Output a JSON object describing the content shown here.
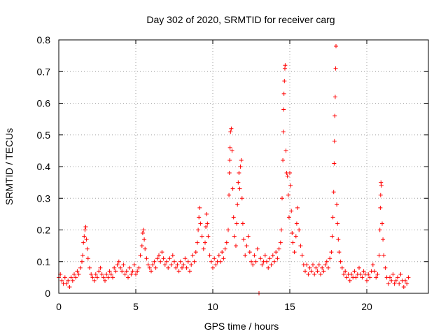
{
  "chart_data": {
    "type": "scatter",
    "title": "Day 302 of 2020, SRMTID for receiver carg",
    "xlabel": "GPS time / hours",
    "ylabel": "SRMTID / TECUs",
    "xlim": [
      0,
      24
    ],
    "ylim": [
      0,
      0.8
    ],
    "xticks": [
      0,
      5,
      10,
      15,
      20
    ],
    "yticks": [
      0,
      0.1,
      0.2,
      0.3,
      0.4,
      0.5,
      0.6,
      0.7,
      0.8
    ],
    "xtick_labels": [
      "0",
      "5",
      "10",
      "15",
      "20"
    ],
    "ytick_labels": [
      "0",
      "0.1",
      "0.2",
      "0.3",
      "0.4",
      "0.5",
      "0.6",
      "0.7",
      "0.8"
    ],
    "grid": true,
    "marker": "+",
    "color": "#ff0000",
    "series": [
      {
        "name": "SRMTID",
        "points": [
          [
            0.0,
            0.05
          ],
          [
            0.1,
            0.06
          ],
          [
            0.2,
            0.04
          ],
          [
            0.3,
            0.03
          ],
          [
            0.4,
            0.05
          ],
          [
            0.5,
            0.03
          ],
          [
            0.6,
            0.04
          ],
          [
            0.7,
            0.02
          ],
          [
            0.8,
            0.05
          ],
          [
            0.9,
            0.04
          ],
          [
            1.0,
            0.06
          ],
          [
            1.1,
            0.05
          ],
          [
            1.2,
            0.07
          ],
          [
            1.3,
            0.06
          ],
          [
            1.4,
            0.08
          ],
          [
            1.5,
            0.1
          ],
          [
            1.55,
            0.12
          ],
          [
            1.6,
            0.16
          ],
          [
            1.65,
            0.18
          ],
          [
            1.7,
            0.2
          ],
          [
            1.75,
            0.21
          ],
          [
            1.8,
            0.17
          ],
          [
            1.85,
            0.14
          ],
          [
            1.9,
            0.11
          ],
          [
            2.0,
            0.08
          ],
          [
            2.1,
            0.06
          ],
          [
            2.2,
            0.05
          ],
          [
            2.3,
            0.04
          ],
          [
            2.4,
            0.06
          ],
          [
            2.5,
            0.05
          ],
          [
            2.6,
            0.07
          ],
          [
            2.7,
            0.08
          ],
          [
            2.8,
            0.06
          ],
          [
            2.9,
            0.05
          ],
          [
            3.0,
            0.04
          ],
          [
            3.1,
            0.06
          ],
          [
            3.2,
            0.05
          ],
          [
            3.3,
            0.07
          ],
          [
            3.4,
            0.06
          ],
          [
            3.5,
            0.05
          ],
          [
            3.6,
            0.08
          ],
          [
            3.7,
            0.07
          ],
          [
            3.8,
            0.09
          ],
          [
            3.9,
            0.1
          ],
          [
            4.0,
            0.08
          ],
          [
            4.1,
            0.07
          ],
          [
            4.2,
            0.09
          ],
          [
            4.3,
            0.06
          ],
          [
            4.4,
            0.07
          ],
          [
            4.5,
            0.05
          ],
          [
            4.6,
            0.08
          ],
          [
            4.7,
            0.06
          ],
          [
            4.8,
            0.07
          ],
          [
            4.9,
            0.09
          ],
          [
            5.0,
            0.06
          ],
          [
            5.1,
            0.07
          ],
          [
            5.2,
            0.08
          ],
          [
            5.3,
            0.12
          ],
          [
            5.4,
            0.15
          ],
          [
            5.45,
            0.19
          ],
          [
            5.5,
            0.2
          ],
          [
            5.55,
            0.17
          ],
          [
            5.6,
            0.14
          ],
          [
            5.7,
            0.11
          ],
          [
            5.8,
            0.09
          ],
          [
            5.9,
            0.08
          ],
          [
            6.0,
            0.07
          ],
          [
            6.1,
            0.09
          ],
          [
            6.2,
            0.1
          ],
          [
            6.3,
            0.08
          ],
          [
            6.4,
            0.11
          ],
          [
            6.5,
            0.12
          ],
          [
            6.6,
            0.1
          ],
          [
            6.7,
            0.13
          ],
          [
            6.8,
            0.11
          ],
          [
            6.9,
            0.09
          ],
          [
            7.0,
            0.1
          ],
          [
            7.1,
            0.08
          ],
          [
            7.2,
            0.11
          ],
          [
            7.3,
            0.09
          ],
          [
            7.4,
            0.12
          ],
          [
            7.5,
            0.1
          ],
          [
            7.6,
            0.08
          ],
          [
            7.7,
            0.09
          ],
          [
            7.8,
            0.07
          ],
          [
            7.9,
            0.1
          ],
          [
            8.0,
            0.08
          ],
          [
            8.1,
            0.09
          ],
          [
            8.2,
            0.11
          ],
          [
            8.3,
            0.08
          ],
          [
            8.4,
            0.1
          ],
          [
            8.5,
            0.07
          ],
          [
            8.6,
            0.09
          ],
          [
            8.7,
            0.12
          ],
          [
            8.8,
            0.1
          ],
          [
            8.9,
            0.13
          ],
          [
            9.0,
            0.16
          ],
          [
            9.05,
            0.2
          ],
          [
            9.1,
            0.24
          ],
          [
            9.15,
            0.27
          ],
          [
            9.2,
            0.22
          ],
          [
            9.3,
            0.18
          ],
          [
            9.4,
            0.14
          ],
          [
            9.5,
            0.16
          ],
          [
            9.55,
            0.21
          ],
          [
            9.6,
            0.25
          ],
          [
            9.65,
            0.22
          ],
          [
            9.7,
            0.18
          ],
          [
            9.8,
            0.12
          ],
          [
            9.9,
            0.1
          ],
          [
            10.0,
            0.08
          ],
          [
            10.1,
            0.11
          ],
          [
            10.2,
            0.09
          ],
          [
            10.3,
            0.1
          ],
          [
            10.4,
            0.12
          ],
          [
            10.5,
            0.1
          ],
          [
            10.6,
            0.13
          ],
          [
            10.7,
            0.11
          ],
          [
            10.8,
            0.14
          ],
          [
            10.9,
            0.16
          ],
          [
            11.0,
            0.2
          ],
          [
            11.05,
            0.31
          ],
          [
            11.08,
            0.38
          ],
          [
            11.1,
            0.42
          ],
          [
            11.12,
            0.46
          ],
          [
            11.15,
            0.51
          ],
          [
            11.2,
            0.52
          ],
          [
            11.25,
            0.45
          ],
          [
            11.3,
            0.33
          ],
          [
            11.35,
            0.24
          ],
          [
            11.4,
            0.18
          ],
          [
            11.5,
            0.15
          ],
          [
            11.55,
            0.22
          ],
          [
            11.6,
            0.28
          ],
          [
            11.65,
            0.35
          ],
          [
            11.7,
            0.38
          ],
          [
            11.75,
            0.33
          ],
          [
            11.8,
            0.4
          ],
          [
            11.85,
            0.42
          ],
          [
            11.9,
            0.3
          ],
          [
            11.95,
            0.22
          ],
          [
            12.0,
            0.17
          ],
          [
            12.1,
            0.12
          ],
          [
            12.2,
            0.15
          ],
          [
            12.3,
            0.18
          ],
          [
            12.4,
            0.13
          ],
          [
            12.5,
            0.1
          ],
          [
            12.6,
            0.09
          ],
          [
            12.7,
            0.12
          ],
          [
            12.8,
            0.1
          ],
          [
            12.9,
            0.14
          ],
          [
            13.0,
            0.0
          ],
          [
            13.1,
            0.11
          ],
          [
            13.2,
            0.09
          ],
          [
            13.3,
            0.1
          ],
          [
            13.4,
            0.12
          ],
          [
            13.5,
            0.1
          ],
          [
            13.6,
            0.08
          ],
          [
            13.7,
            0.11
          ],
          [
            13.8,
            0.09
          ],
          [
            13.9,
            0.12
          ],
          [
            14.0,
            0.1
          ],
          [
            14.1,
            0.13
          ],
          [
            14.2,
            0.11
          ],
          [
            14.3,
            0.14
          ],
          [
            14.4,
            0.16
          ],
          [
            14.45,
            0.2
          ],
          [
            14.5,
            0.3
          ],
          [
            14.55,
            0.42
          ],
          [
            14.58,
            0.51
          ],
          [
            14.6,
            0.58
          ],
          [
            14.62,
            0.63
          ],
          [
            14.65,
            0.67
          ],
          [
            14.68,
            0.71
          ],
          [
            14.7,
            0.72
          ],
          [
            14.75,
            0.45
          ],
          [
            14.8,
            0.38
          ],
          [
            14.85,
            0.37
          ],
          [
            14.9,
            0.31
          ],
          [
            14.95,
            0.24
          ],
          [
            15.0,
            0.38
          ],
          [
            15.05,
            0.34
          ],
          [
            15.1,
            0.26
          ],
          [
            15.15,
            0.19
          ],
          [
            15.2,
            0.16
          ],
          [
            15.3,
            0.13
          ],
          [
            15.4,
            0.18
          ],
          [
            15.45,
            0.22
          ],
          [
            15.5,
            0.27
          ],
          [
            15.6,
            0.2
          ],
          [
            15.7,
            0.15
          ],
          [
            15.8,
            0.12
          ],
          [
            15.9,
            0.09
          ],
          [
            16.0,
            0.07
          ],
          [
            16.1,
            0.09
          ],
          [
            16.2,
            0.06
          ],
          [
            16.3,
            0.08
          ],
          [
            16.4,
            0.07
          ],
          [
            16.5,
            0.09
          ],
          [
            16.6,
            0.06
          ],
          [
            16.7,
            0.08
          ],
          [
            16.8,
            0.07
          ],
          [
            16.9,
            0.09
          ],
          [
            17.0,
            0.06
          ],
          [
            17.1,
            0.08
          ],
          [
            17.2,
            0.07
          ],
          [
            17.3,
            0.09
          ],
          [
            17.4,
            0.1
          ],
          [
            17.5,
            0.08
          ],
          [
            17.6,
            0.11
          ],
          [
            17.7,
            0.13
          ],
          [
            17.75,
            0.18
          ],
          [
            17.8,
            0.24
          ],
          [
            17.85,
            0.32
          ],
          [
            17.88,
            0.41
          ],
          [
            17.9,
            0.48
          ],
          [
            17.92,
            0.56
          ],
          [
            17.95,
            0.62
          ],
          [
            17.98,
            0.71
          ],
          [
            18.0,
            0.78
          ],
          [
            18.05,
            0.28
          ],
          [
            18.1,
            0.22
          ],
          [
            18.15,
            0.17
          ],
          [
            18.2,
            0.13
          ],
          [
            18.3,
            0.1
          ],
          [
            18.4,
            0.08
          ],
          [
            18.5,
            0.06
          ],
          [
            18.6,
            0.07
          ],
          [
            18.7,
            0.05
          ],
          [
            18.8,
            0.06
          ],
          [
            18.9,
            0.04
          ],
          [
            19.0,
            0.06
          ],
          [
            19.1,
            0.05
          ],
          [
            19.2,
            0.07
          ],
          [
            19.3,
            0.05
          ],
          [
            19.4,
            0.06
          ],
          [
            19.5,
            0.08
          ],
          [
            19.6,
            0.06
          ],
          [
            19.7,
            0.05
          ],
          [
            19.8,
            0.07
          ],
          [
            19.9,
            0.06
          ],
          [
            20.0,
            0.04
          ],
          [
            20.1,
            0.06
          ],
          [
            20.2,
            0.05
          ],
          [
            20.3,
            0.07
          ],
          [
            20.4,
            0.09
          ],
          [
            20.5,
            0.07
          ],
          [
            20.6,
            0.05
          ],
          [
            20.7,
            0.06
          ],
          [
            20.8,
            0.12
          ],
          [
            20.85,
            0.2
          ],
          [
            20.88,
            0.27
          ],
          [
            20.9,
            0.31
          ],
          [
            20.92,
            0.35
          ],
          [
            20.95,
            0.34
          ],
          [
            21.0,
            0.22
          ],
          [
            21.05,
            0.17
          ],
          [
            21.1,
            0.12
          ],
          [
            21.2,
            0.08
          ],
          [
            21.3,
            0.05
          ],
          [
            21.4,
            0.03
          ],
          [
            21.5,
            0.05
          ],
          [
            21.6,
            0.04
          ],
          [
            21.7,
            0.06
          ],
          [
            21.8,
            0.03
          ],
          [
            21.9,
            0.04
          ],
          [
            22.0,
            0.05
          ],
          [
            22.1,
            0.03
          ],
          [
            22.2,
            0.06
          ],
          [
            22.3,
            0.04
          ],
          [
            22.4,
            0.02
          ],
          [
            22.5,
            0.04
          ],
          [
            22.6,
            0.03
          ],
          [
            22.7,
            0.05
          ]
        ]
      }
    ]
  }
}
